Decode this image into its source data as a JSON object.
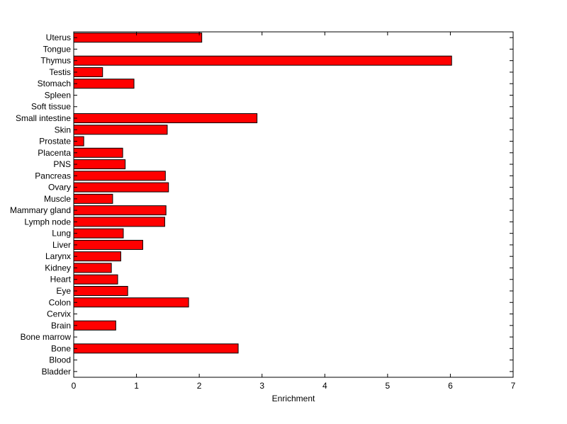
{
  "chart_data": {
    "type": "bar",
    "orientation": "horizontal",
    "title": "",
    "xlabel": "Enrichment",
    "ylabel": "",
    "xlim": [
      0,
      7
    ],
    "xticks": [
      "0",
      "1",
      "2",
      "3",
      "4",
      "5",
      "6",
      "7"
    ],
    "grid": false,
    "bar_color": "#ff0000",
    "bar_edge_color": "#000000",
    "categories": [
      "Uterus",
      "Tongue",
      "Thymus",
      "Testis",
      "Stomach",
      "Spleen",
      "Soft tissue",
      "Small intestine",
      "Skin",
      "Prostate",
      "Placenta",
      "PNS",
      "Pancreas",
      "Ovary",
      "Muscle",
      "Mammary gland",
      "Lymph node",
      "Lung",
      "Liver",
      "Larynx",
      "Kidney",
      "Heart",
      "Eye",
      "Colon",
      "Cervix",
      "Brain",
      "Bone marrow",
      "Bone",
      "Blood",
      "Bladder"
    ],
    "values": [
      2.04,
      0,
      6.02,
      0.46,
      0.96,
      0,
      0,
      2.92,
      1.49,
      0.16,
      0.78,
      0.82,
      1.46,
      1.51,
      0.62,
      1.47,
      1.45,
      0.79,
      1.1,
      0.75,
      0.6,
      0.7,
      0.86,
      1.83,
      0,
      0.67,
      0,
      2.62,
      0,
      0
    ]
  }
}
